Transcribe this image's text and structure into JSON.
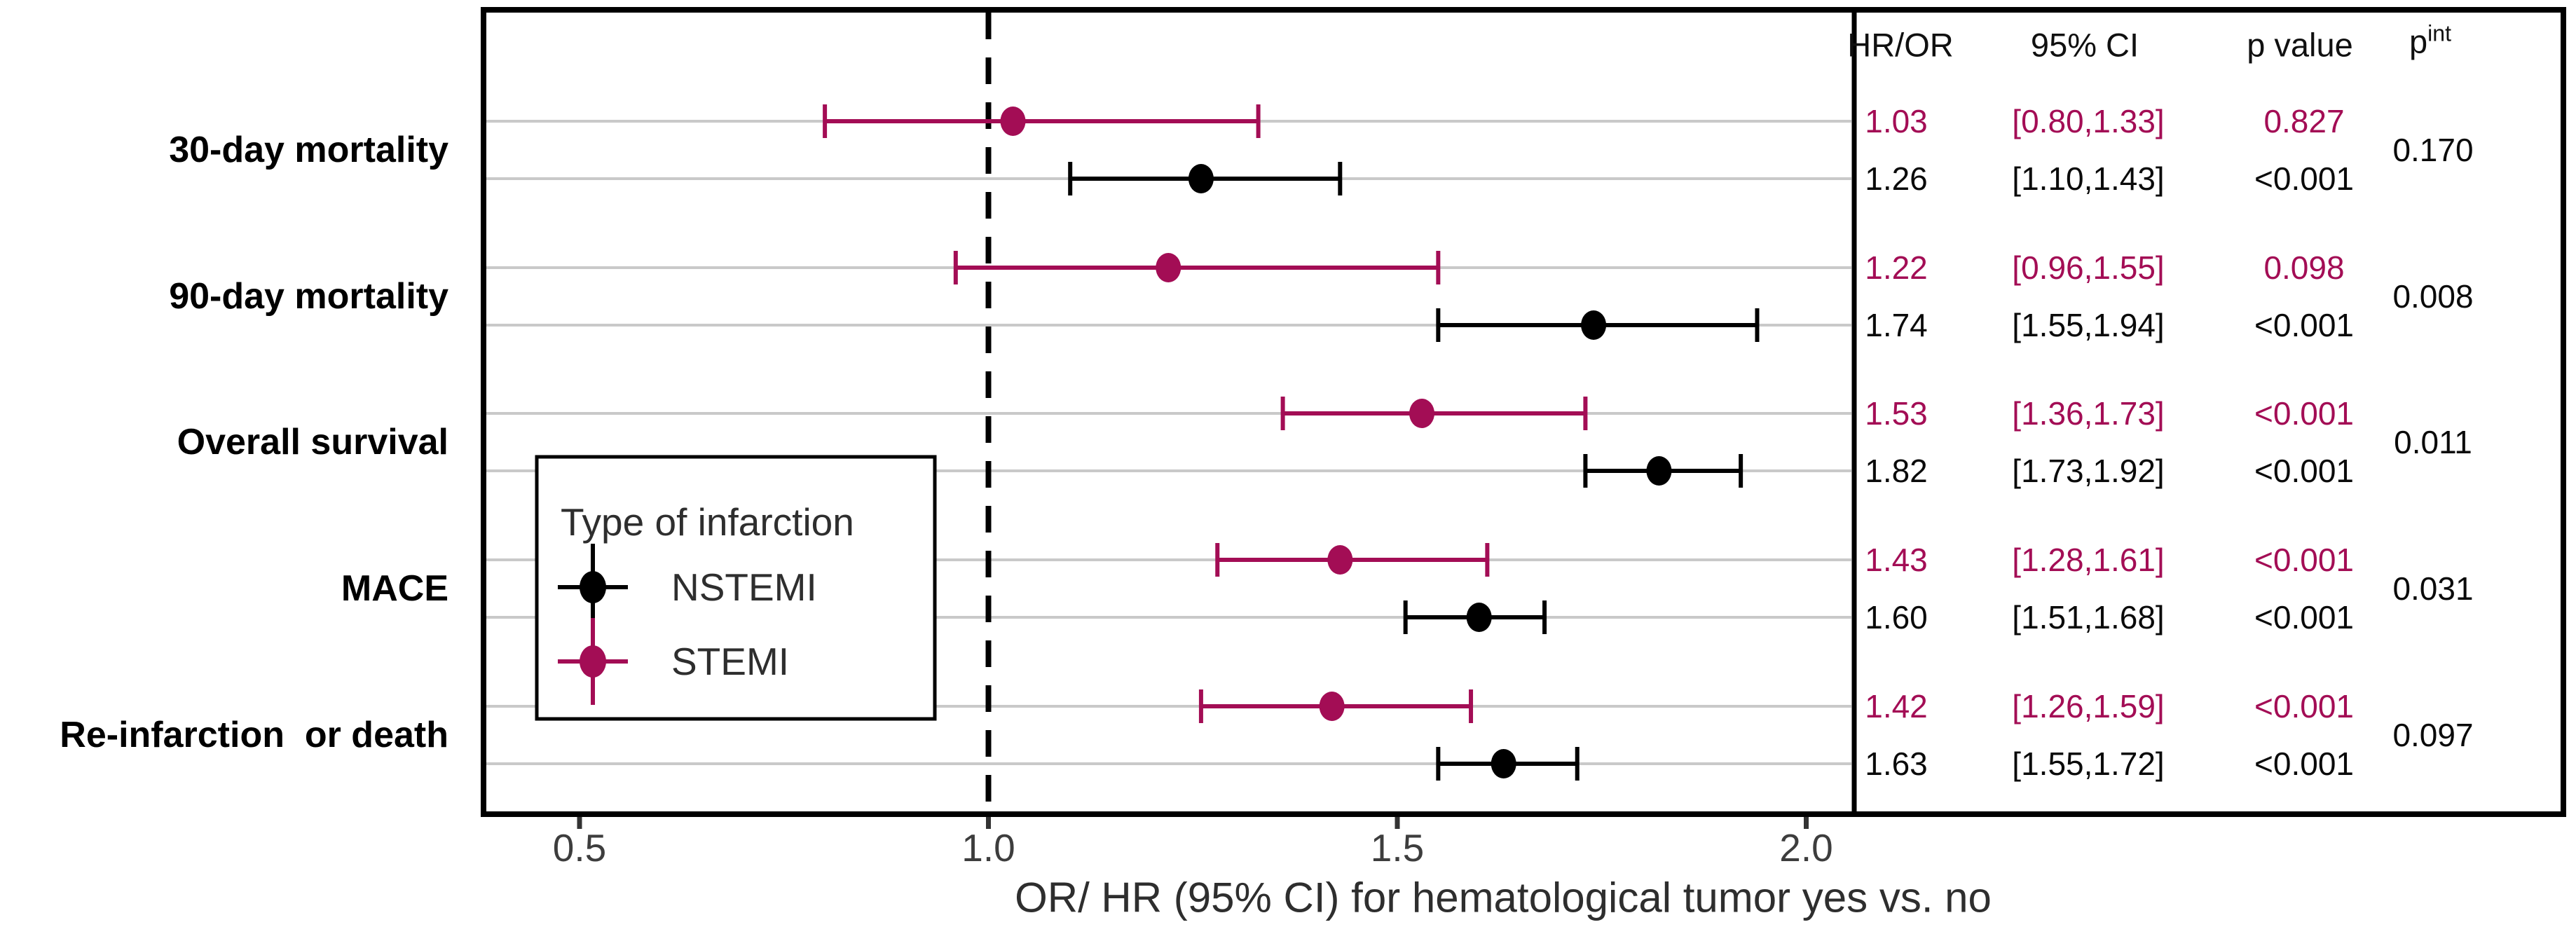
{
  "figure": {
    "legend": {
      "title": "Type of infarction",
      "entries": [
        {
          "label": "NSTEMI",
          "color_key": "nstemi"
        },
        {
          "label": "STEMI",
          "color_key": "stemi"
        }
      ]
    },
    "table": {
      "headers": {
        "estimate": "HR/OR",
        "ci": "95% CI",
        "p": "p value",
        "p_int_base": "p",
        "p_int_sup": "int"
      }
    }
  },
  "colors": {
    "stemi": "#A30D55",
    "nstemi": "#000000",
    "grid": "#C9C9C9",
    "axis_text": "#3d3d3d",
    "border": "#000000",
    "reference_line": "#000000"
  },
  "chart_data": {
    "type": "forest",
    "title": "",
    "xlabel": "OR/ HR (95% CI) for hematological tumor yes vs. no",
    "ylabel": "",
    "x_ticks": [
      0.5,
      1.0,
      1.5,
      2.0
    ],
    "x_tick_labels": [
      "0.5",
      "1.0",
      "1.5",
      "2.0"
    ],
    "xlim": [
      0.38,
      2.06
    ],
    "reference_line": 1.0,
    "grid": "horizontal-only",
    "legend_position": "inside-left",
    "groups": [
      "STEMI",
      "NSTEMI"
    ],
    "categories": [
      "30-day mortality",
      "90-day mortality",
      "Overall survival",
      "MACE",
      "Re-infarction  or death"
    ],
    "rows": [
      {
        "category": "30-day mortality",
        "group": "STEMI",
        "color_key": "stemi",
        "estimate": 1.03,
        "ci_low": 0.8,
        "ci_high": 1.33,
        "estimate_label": "1.03",
        "ci_label": "[0.80,1.33]",
        "p_label": "0.827"
      },
      {
        "category": "30-day mortality",
        "group": "NSTEMI",
        "color_key": "nstemi",
        "estimate": 1.26,
        "ci_low": 1.1,
        "ci_high": 1.43,
        "estimate_label": "1.26",
        "ci_label": "[1.10,1.43]",
        "p_label": "<0.001"
      },
      {
        "category": "90-day mortality",
        "group": "STEMI",
        "color_key": "stemi",
        "estimate": 1.22,
        "ci_low": 0.96,
        "ci_high": 1.55,
        "estimate_label": "1.22",
        "ci_label": "[0.96,1.55]",
        "p_label": "0.098"
      },
      {
        "category": "90-day mortality",
        "group": "NSTEMI",
        "color_key": "nstemi",
        "estimate": 1.74,
        "ci_low": 1.55,
        "ci_high": 1.94,
        "estimate_label": "1.74",
        "ci_label": "[1.55,1.94]",
        "p_label": "<0.001"
      },
      {
        "category": "Overall survival",
        "group": "STEMI",
        "color_key": "stemi",
        "estimate": 1.53,
        "ci_low": 1.36,
        "ci_high": 1.73,
        "estimate_label": "1.53",
        "ci_label": "[1.36,1.73]",
        "p_label": "<0.001"
      },
      {
        "category": "Overall survival",
        "group": "NSTEMI",
        "color_key": "nstemi",
        "estimate": 1.82,
        "ci_low": 1.73,
        "ci_high": 1.92,
        "estimate_label": "1.82",
        "ci_label": "[1.73,1.92]",
        "p_label": "<0.001"
      },
      {
        "category": "MACE",
        "group": "STEMI",
        "color_key": "stemi",
        "estimate": 1.43,
        "ci_low": 1.28,
        "ci_high": 1.61,
        "estimate_label": "1.43",
        "ci_label": "[1.28,1.61]",
        "p_label": "<0.001"
      },
      {
        "category": "MACE",
        "group": "NSTEMI",
        "color_key": "nstemi",
        "estimate": 1.6,
        "ci_low": 1.51,
        "ci_high": 1.68,
        "estimate_label": "1.60",
        "ci_label": "[1.51,1.68]",
        "p_label": "<0.001"
      },
      {
        "category": "Re-infarction  or death",
        "group": "STEMI",
        "color_key": "stemi",
        "estimate": 1.42,
        "ci_low": 1.26,
        "ci_high": 1.59,
        "estimate_label": "1.42",
        "ci_label": "[1.26,1.59]",
        "p_label": "<0.001"
      },
      {
        "category": "Re-infarction  or death",
        "group": "NSTEMI",
        "color_key": "nstemi",
        "estimate": 1.63,
        "ci_low": 1.55,
        "ci_high": 1.72,
        "estimate_label": "1.63",
        "ci_label": "[1.55,1.72]",
        "p_label": "<0.001"
      }
    ],
    "p_interaction": [
      "0.170",
      "0.008",
      "0.011",
      "0.031",
      "0.097"
    ]
  }
}
